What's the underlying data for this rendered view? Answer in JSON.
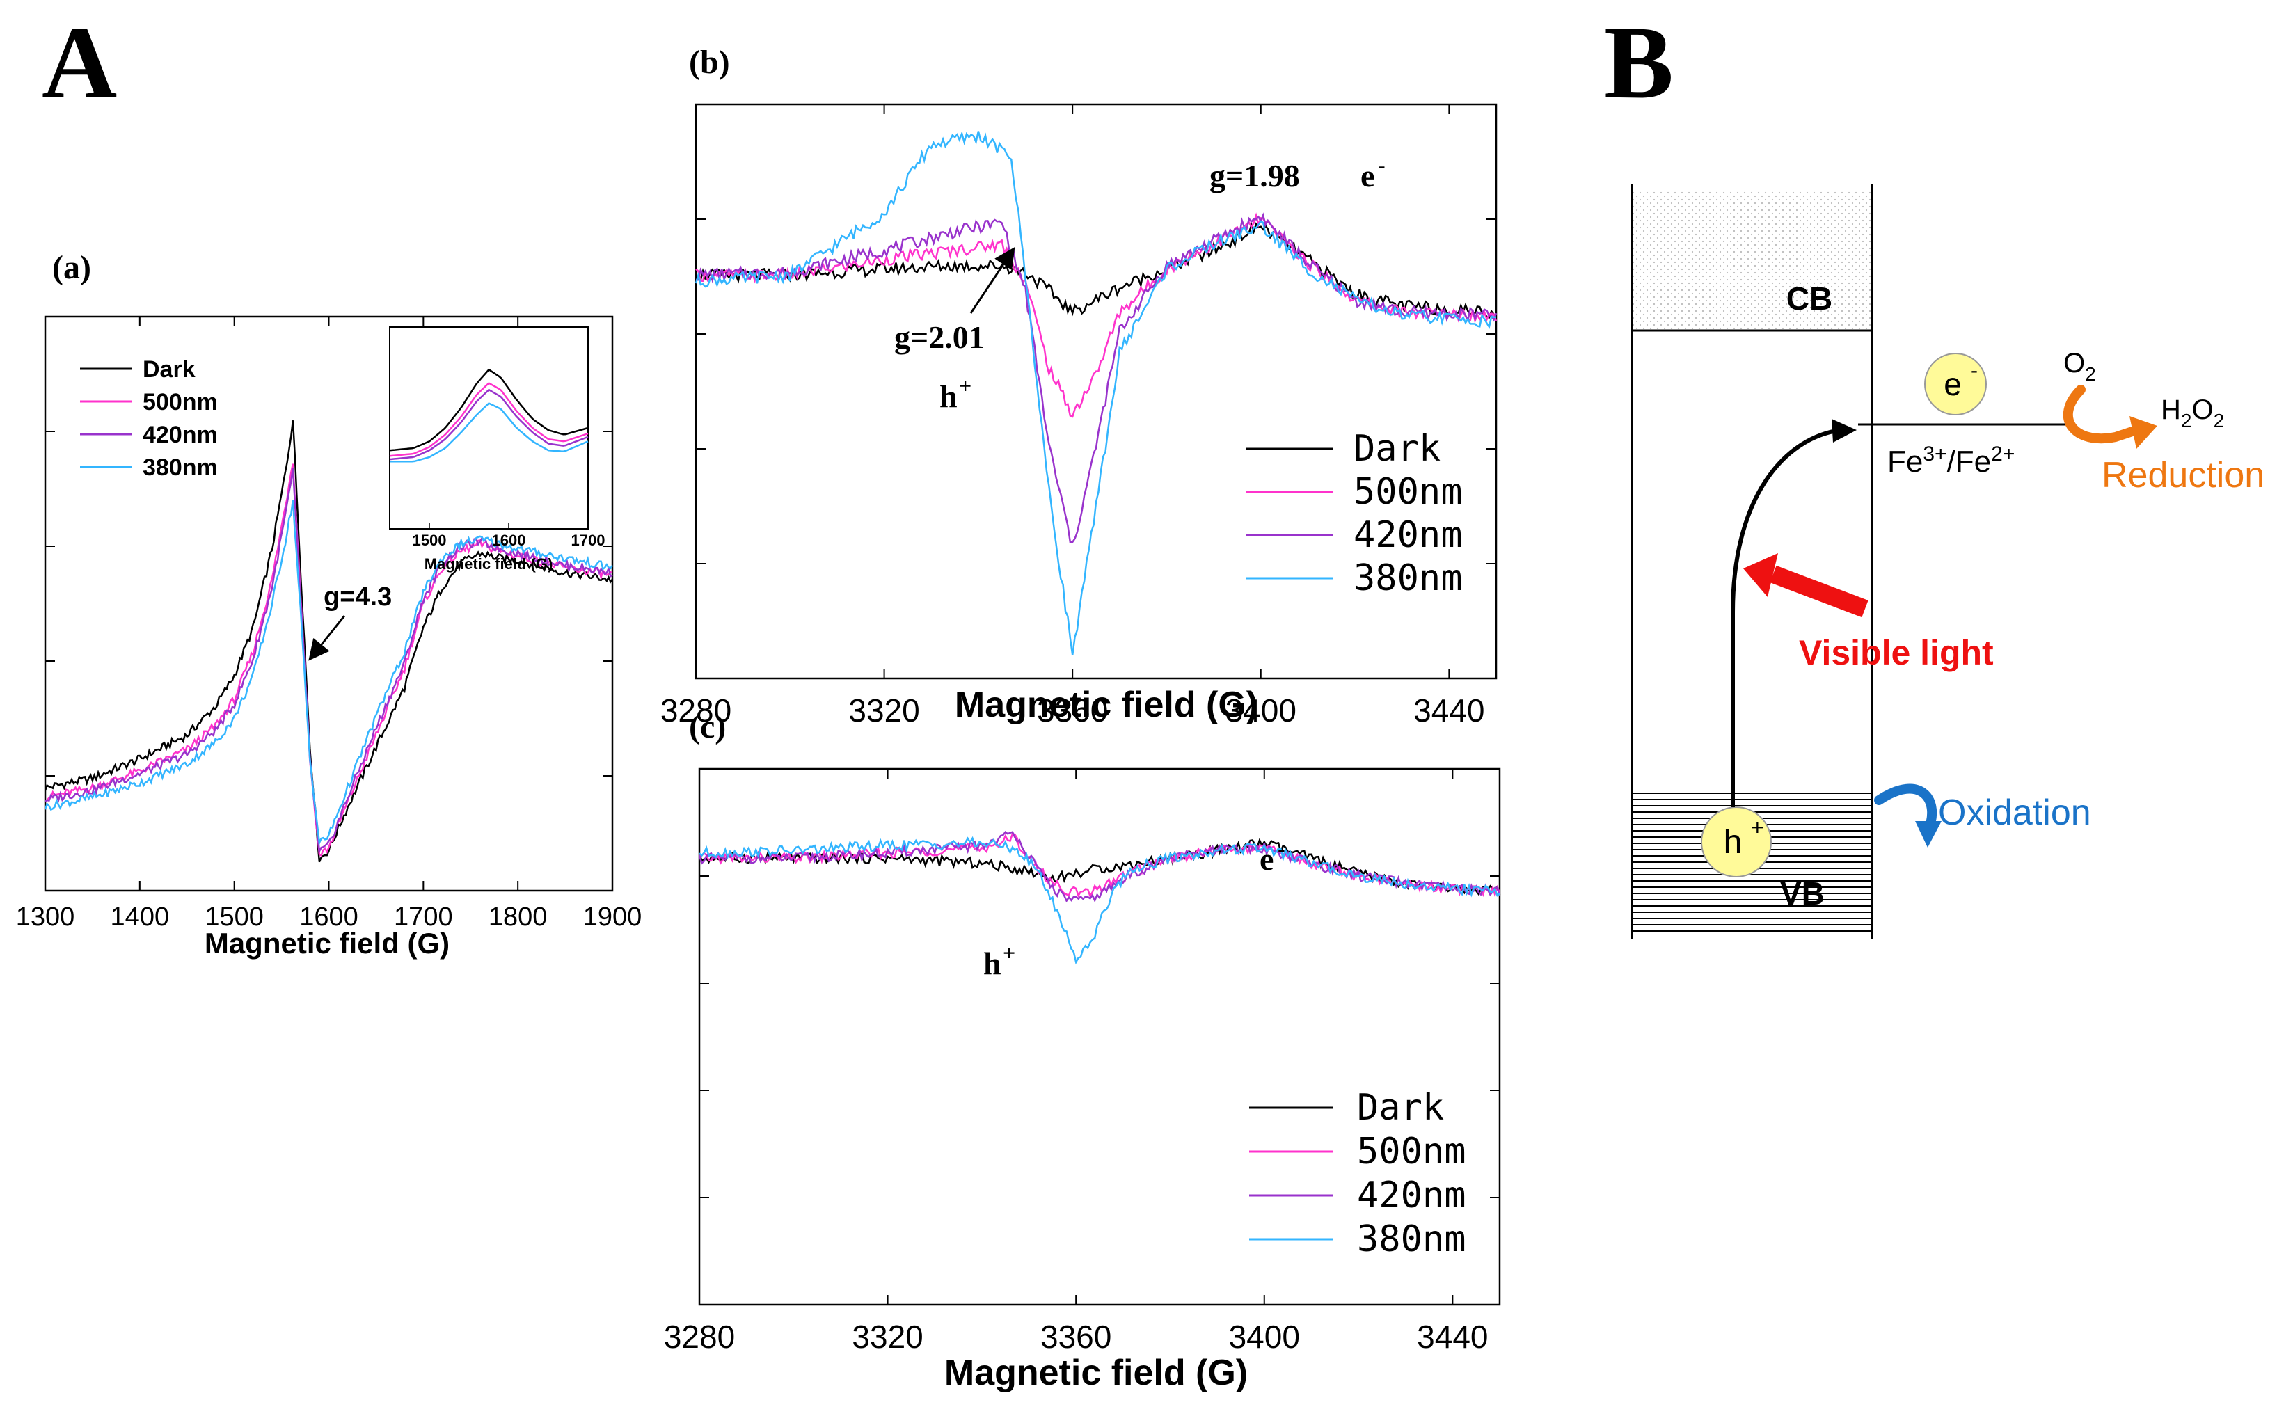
{
  "figure": {
    "panel_A_label": "A",
    "panel_B_label": "B"
  },
  "colors": {
    "dark": "#000000",
    "nm500": "#ff33cc",
    "nm420": "#9933cc",
    "nm380": "#33b5ff",
    "arrow_red": "#ee1111",
    "orange": "#ee7711",
    "blue": "#1a73c8",
    "circle_fill": "#fffa99"
  },
  "chart_data": [
    {
      "id": "a",
      "type": "line",
      "subplot_label": "(a)",
      "xlabel": "Magnetic field (G)",
      "ylabel": "",
      "xlim": [
        1300,
        1900
      ],
      "ylim": [
        -1.15,
        1.25
      ],
      "x_ticks": [
        1300,
        1400,
        1500,
        1600,
        1700,
        1800,
        1900
      ],
      "legend": [
        "Dark",
        "500nm",
        "420nm",
        "380nm"
      ],
      "legend_position": "top-left",
      "annotation": "g=4.3",
      "series": [
        {
          "name": "Dark",
          "color": "#000000",
          "x": [
            1300,
            1350,
            1400,
            1450,
            1480,
            1500,
            1520,
            1540,
            1555,
            1562,
            1570,
            1580,
            1590,
            1600,
            1620,
            1650,
            1680,
            1700,
            1720,
            1740,
            1760,
            1780,
            1800,
            1850,
            1900
          ],
          "y": [
            -0.72,
            -0.68,
            -0.6,
            -0.5,
            -0.38,
            -0.25,
            -0.05,
            0.28,
            0.62,
            0.82,
            0.2,
            -0.55,
            -1.02,
            -0.98,
            -0.8,
            -0.55,
            -0.3,
            -0.05,
            0.12,
            0.22,
            0.26,
            0.24,
            0.23,
            0.18,
            0.15
          ]
        },
        {
          "name": "500nm",
          "color": "#ff33cc",
          "x": [
            1300,
            1350,
            1400,
            1450,
            1480,
            1500,
            1520,
            1540,
            1555,
            1562,
            1570,
            1580,
            1590,
            1600,
            1620,
            1650,
            1680,
            1700,
            1720,
            1740,
            1760,
            1780,
            1800,
            1850,
            1900
          ],
          "y": [
            -0.76,
            -0.72,
            -0.65,
            -0.56,
            -0.46,
            -0.35,
            -0.15,
            0.15,
            0.48,
            0.65,
            0.1,
            -0.6,
            -1.0,
            -0.97,
            -0.78,
            -0.5,
            -0.22,
            0.05,
            0.2,
            0.27,
            0.3,
            0.27,
            0.25,
            0.2,
            0.17
          ]
        },
        {
          "name": "420nm",
          "color": "#9933cc",
          "x": [
            1300,
            1350,
            1400,
            1450,
            1480,
            1500,
            1520,
            1540,
            1555,
            1562,
            1570,
            1580,
            1590,
            1600,
            1620,
            1650,
            1680,
            1700,
            1720,
            1740,
            1760,
            1780,
            1800,
            1850,
            1900
          ],
          "y": [
            -0.77,
            -0.73,
            -0.66,
            -0.58,
            -0.48,
            -0.37,
            -0.18,
            0.12,
            0.44,
            0.6,
            0.08,
            -0.6,
            -0.99,
            -0.96,
            -0.76,
            -0.47,
            -0.2,
            0.07,
            0.22,
            0.29,
            0.31,
            0.28,
            0.26,
            0.21,
            0.18
          ]
        },
        {
          "name": "380nm",
          "color": "#33b5ff",
          "x": [
            1300,
            1350,
            1400,
            1450,
            1480,
            1500,
            1520,
            1540,
            1555,
            1562,
            1570,
            1580,
            1590,
            1600,
            1620,
            1650,
            1680,
            1700,
            1720,
            1740,
            1760,
            1780,
            1800,
            1850,
            1900
          ],
          "y": [
            -0.8,
            -0.76,
            -0.7,
            -0.62,
            -0.53,
            -0.43,
            -0.25,
            0.05,
            0.33,
            0.48,
            0.02,
            -0.6,
            -0.95,
            -0.92,
            -0.72,
            -0.42,
            -0.15,
            0.1,
            0.24,
            0.3,
            0.32,
            0.3,
            0.28,
            0.24,
            0.2
          ]
        }
      ],
      "inset": {
        "xlabel": "Magnetic field (G)",
        "xlim": [
          1450,
          1700
        ],
        "x_ticks": [
          1500,
          1600,
          1700
        ],
        "series": [
          {
            "name": "Dark",
            "color": "#000000",
            "x": [
              1450,
              1480,
              1500,
              1520,
              1540,
              1560,
              1575,
              1590,
              1610,
              1630,
              1650,
              1670,
              1700
            ],
            "y": [
              0.1,
              0.12,
              0.18,
              0.3,
              0.48,
              0.7,
              0.82,
              0.75,
              0.55,
              0.38,
              0.28,
              0.24,
              0.3
            ]
          },
          {
            "name": "500nm",
            "color": "#ff33cc",
            "x": [
              1450,
              1480,
              1500,
              1520,
              1540,
              1560,
              1575,
              1590,
              1610,
              1630,
              1650,
              1670,
              1700
            ],
            "y": [
              0.05,
              0.07,
              0.13,
              0.24,
              0.4,
              0.6,
              0.7,
              0.64,
              0.45,
              0.3,
              0.2,
              0.18,
              0.25
            ]
          },
          {
            "name": "420nm",
            "color": "#9933cc",
            "x": [
              1450,
              1480,
              1500,
              1520,
              1540,
              1560,
              1575,
              1590,
              1610,
              1630,
              1650,
              1670,
              1700
            ],
            "y": [
              0.02,
              0.04,
              0.1,
              0.2,
              0.35,
              0.54,
              0.64,
              0.58,
              0.4,
              0.26,
              0.16,
              0.14,
              0.22
            ]
          },
          {
            "name": "380nm",
            "color": "#33b5ff",
            "x": [
              1450,
              1480,
              1500,
              1520,
              1540,
              1560,
              1575,
              1590,
              1610,
              1630,
              1650,
              1670,
              1700
            ],
            "y": [
              0.0,
              0.0,
              0.04,
              0.12,
              0.26,
              0.42,
              0.52,
              0.47,
              0.3,
              0.18,
              0.1,
              0.09,
              0.18
            ]
          }
        ]
      }
    },
    {
      "id": "b",
      "type": "line",
      "subplot_label": "(b)",
      "xlabel": "Magnetic field (G)",
      "xlim": [
        3280,
        3450
      ],
      "ylim": [
        -1.3,
        0.55
      ],
      "x_ticks": [
        3280,
        3320,
        3360,
        3400,
        3440
      ],
      "legend": [
        "Dark",
        "500nm",
        "420nm",
        "380nm"
      ],
      "legend_position": "bottom-right",
      "annotations": [
        "g=1.98",
        "e",
        "-",
        "g=2.01",
        "h",
        "+"
      ],
      "series": [
        {
          "name": "Dark",
          "color": "#000000",
          "x": [
            3280,
            3300,
            3320,
            3335,
            3345,
            3350,
            3355,
            3360,
            3365,
            3370,
            3380,
            3390,
            3400,
            3410,
            3420,
            3430,
            3450
          ],
          "y": [
            0.0,
            0.0,
            0.02,
            0.03,
            0.03,
            0.01,
            -0.05,
            -0.12,
            -0.08,
            -0.04,
            0.02,
            0.08,
            0.16,
            0.05,
            -0.06,
            -0.1,
            -0.12
          ]
        },
        {
          "name": "500nm",
          "color": "#ff33cc",
          "x": [
            3280,
            3300,
            3320,
            3335,
            3345,
            3350,
            3355,
            3360,
            3365,
            3370,
            3380,
            3390,
            3400,
            3410,
            3420,
            3430,
            3450
          ],
          "y": [
            0.0,
            0.0,
            0.05,
            0.08,
            0.1,
            -0.02,
            -0.3,
            -0.45,
            -0.32,
            -0.12,
            0.02,
            0.1,
            0.18,
            0.04,
            -0.08,
            -0.12,
            -0.13
          ]
        },
        {
          "name": "420nm",
          "color": "#9933cc",
          "x": [
            3280,
            3300,
            3320,
            3335,
            3345,
            3350,
            3355,
            3360,
            3365,
            3370,
            3380,
            3390,
            3400,
            3410,
            3420,
            3430,
            3450
          ],
          "y": [
            0.0,
            0.01,
            0.08,
            0.14,
            0.17,
            -0.05,
            -0.55,
            -0.88,
            -0.55,
            -0.18,
            0.03,
            0.11,
            0.19,
            0.04,
            -0.08,
            -0.12,
            -0.13
          ]
        },
        {
          "name": "380nm",
          "color": "#33b5ff",
          "x": [
            3280,
            3300,
            3320,
            3330,
            3340,
            3347,
            3350,
            3355,
            3360,
            3365,
            3370,
            3380,
            3390,
            3400,
            3410,
            3420,
            3430,
            3450
          ],
          "y": [
            -0.02,
            0.0,
            0.2,
            0.42,
            0.45,
            0.38,
            0.0,
            -0.7,
            -1.22,
            -0.75,
            -0.25,
            0.02,
            0.1,
            0.16,
            0.02,
            -0.08,
            -0.13,
            -0.15
          ]
        }
      ]
    },
    {
      "id": "c",
      "type": "line",
      "subplot_label": "(c)",
      "xlabel": "Magnetic field (G)",
      "xlim": [
        3280,
        3450
      ],
      "ylim": [
        -1.75,
        0.35
      ],
      "x_ticks": [
        3280,
        3320,
        3360,
        3400,
        3440
      ],
      "legend": [
        "Dark",
        "500nm",
        "420nm",
        "380nm"
      ],
      "legend_position": "bottom-right",
      "annotations": [
        "e",
        "-",
        "h",
        "+"
      ],
      "series": [
        {
          "name": "Dark",
          "color": "#000000",
          "x": [
            3280,
            3300,
            3320,
            3340,
            3350,
            3355,
            3360,
            3365,
            3370,
            3380,
            3390,
            3400,
            3410,
            3420,
            3430,
            3440,
            3450
          ],
          "y": [
            0.0,
            0.0,
            0.0,
            -0.02,
            -0.05,
            -0.08,
            -0.06,
            -0.04,
            -0.03,
            0.0,
            0.03,
            0.06,
            0.0,
            -0.06,
            -0.1,
            -0.12,
            -0.13
          ]
        },
        {
          "name": "500nm",
          "color": "#ff33cc",
          "x": [
            3280,
            3300,
            3320,
            3340,
            3347,
            3352,
            3357,
            3362,
            3367,
            3372,
            3380,
            3390,
            3400,
            3410,
            3420,
            3430,
            3440,
            3450
          ],
          "y": [
            0.0,
            0.0,
            0.02,
            0.04,
            0.08,
            -0.05,
            -0.12,
            -0.14,
            -0.1,
            -0.05,
            0.0,
            0.03,
            0.04,
            -0.02,
            -0.07,
            -0.1,
            -0.12,
            -0.13
          ]
        },
        {
          "name": "420nm",
          "color": "#9933cc",
          "x": [
            3280,
            3300,
            3320,
            3340,
            3347,
            3352,
            3357,
            3362,
            3367,
            3372,
            3380,
            3390,
            3400,
            3410,
            3420,
            3430,
            3440,
            3450
          ],
          "y": [
            0.0,
            0.0,
            0.02,
            0.05,
            0.1,
            -0.05,
            -0.15,
            -0.17,
            -0.12,
            -0.06,
            0.0,
            0.03,
            0.04,
            -0.02,
            -0.07,
            -0.1,
            -0.12,
            -0.13
          ]
        },
        {
          "name": "380nm",
          "color": "#33b5ff",
          "x": [
            3280,
            3300,
            3320,
            3340,
            3347,
            3352,
            3357,
            3360,
            3364,
            3368,
            3372,
            3380,
            3390,
            3400,
            3410,
            3420,
            3430,
            3440,
            3450
          ],
          "y": [
            0.02,
            0.03,
            0.05,
            0.06,
            0.04,
            -0.05,
            -0.25,
            -0.4,
            -0.3,
            -0.12,
            -0.04,
            0.0,
            0.03,
            0.04,
            -0.02,
            -0.07,
            -0.1,
            -0.12,
            -0.13
          ]
        }
      ]
    }
  ],
  "diagram_B": {
    "cb_label": "CB",
    "vb_label": "VB",
    "electron": "e",
    "electron_sup": "-",
    "hole": "h",
    "hole_sup": "+",
    "fe_base1": "Fe",
    "fe_sup1": "3+",
    "fe_slash": "/Fe",
    "fe_sup2": "2+",
    "o2_base": "O",
    "o2_sub": "2",
    "h2o2_a": "H",
    "h2o2_sub1": "2",
    "h2o2_b": "O",
    "h2o2_sub2": "2",
    "reduction": "Reduction",
    "oxidation": "Oxidation",
    "visible_light": "Visible light"
  }
}
